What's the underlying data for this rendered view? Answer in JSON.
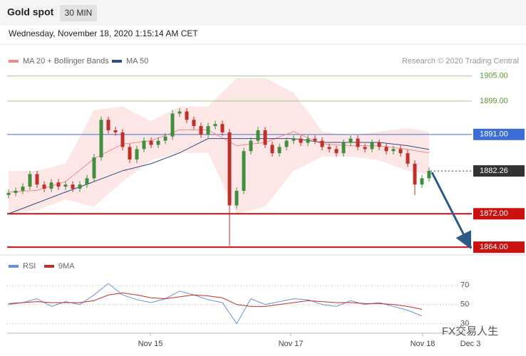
{
  "chart_data": {
    "type": "candlestick",
    "title": "Gold spot",
    "timeframe": "30 MIN",
    "subtitle": "Wednesday, November 18, 2020 1:15:14 AM CET",
    "source": "Research © 2020 Trading Central",
    "watermark": "FX交易人生",
    "up_color": "#3f8f3f",
    "down_color": "#c0302a",
    "x": [
      0,
      1,
      2,
      3,
      4,
      5,
      6,
      7,
      8,
      9,
      10,
      11,
      12,
      13,
      14,
      15,
      16,
      17,
      18,
      19,
      20,
      21,
      22,
      23,
      24,
      25,
      26,
      27,
      28,
      29,
      30,
      31,
      32,
      33,
      34,
      35,
      36,
      37,
      38,
      39,
      40,
      41,
      42,
      43,
      44,
      45,
      46,
      47,
      48,
      49,
      50,
      51,
      52,
      53,
      54,
      55,
      56,
      57,
      58,
      59
    ],
    "open": [
      1876.5,
      1877.0,
      1877.5,
      1878.5,
      1881.5,
      1879.0,
      1878.0,
      1879.5,
      1878.5,
      1879.0,
      1878.0,
      1879.0,
      1880.5,
      1885.5,
      1894.5,
      1892.0,
      1891.5,
      1888.0,
      1885.0,
      1887.5,
      1889.5,
      1888.5,
      1889.5,
      1890.5,
      1896.0,
      1896.5,
      1894.5,
      1893.0,
      1891.0,
      1893.0,
      1893.5,
      1891.5,
      1874.0,
      1877.5,
      1887.0,
      1889.5,
      1892.0,
      1888.5,
      1886.5,
      1888.0,
      1889.5,
      1890.0,
      1889.0,
      1890.0,
      1889.5,
      1888.0,
      1887.5,
      1886.5,
      1889.0,
      1890.0,
      1888.0,
      1887.5,
      1889.0,
      1888.0,
      1887.0,
      1887.5,
      1886.5,
      1884.0,
      1879.0,
      1880.5
    ],
    "high": [
      1877.8,
      1878.3,
      1879.3,
      1882.3,
      1882.3,
      1879.8,
      1880.3,
      1880.3,
      1879.8,
      1879.8,
      1879.8,
      1881.3,
      1886.3,
      1895.3,
      1895.3,
      1892.8,
      1892.3,
      1888.8,
      1888.3,
      1890.3,
      1890.3,
      1890.3,
      1891.3,
      1896.8,
      1897.3,
      1897.3,
      1895.3,
      1893.8,
      1893.8,
      1894.3,
      1894.3,
      1892.3,
      1878.3,
      1887.8,
      1890.3,
      1892.8,
      1892.8,
      1889.3,
      1888.8,
      1890.3,
      1890.8,
      1890.8,
      1890.8,
      1890.8,
      1890.3,
      1888.8,
      1888.3,
      1889.8,
      1890.8,
      1890.8,
      1888.8,
      1889.8,
      1889.8,
      1888.8,
      1888.3,
      1888.3,
      1887.3,
      1884.8,
      1881.3,
      1883.1
    ],
    "low": [
      1875.7,
      1876.2,
      1876.7,
      1877.7,
      1878.2,
      1877.2,
      1877.2,
      1877.7,
      1877.7,
      1877.2,
      1877.2,
      1878.2,
      1879.7,
      1884.7,
      1891.2,
      1890.7,
      1887.2,
      1884.2,
      1884.2,
      1886.7,
      1887.7,
      1887.7,
      1888.7,
      1889.7,
      1895.2,
      1893.7,
      1892.2,
      1890.2,
      1890.2,
      1892.2,
      1890.7,
      1864.3,
      1873.2,
      1876.7,
      1886.2,
      1888.7,
      1887.7,
      1885.7,
      1885.7,
      1887.2,
      1888.7,
      1888.2,
      1888.2,
      1888.7,
      1887.2,
      1886.7,
      1885.7,
      1885.7,
      1888.2,
      1887.2,
      1886.7,
      1886.7,
      1887.2,
      1886.2,
      1886.2,
      1885.7,
      1883.2,
      1876.5,
      1878.2,
      1879.7
    ],
    "close": [
      1877.0,
      1877.5,
      1878.5,
      1881.5,
      1879.0,
      1878.0,
      1879.5,
      1878.5,
      1879.0,
      1878.0,
      1879.0,
      1880.5,
      1885.5,
      1894.5,
      1892.0,
      1891.5,
      1888.0,
      1885.0,
      1887.5,
      1889.5,
      1888.5,
      1889.5,
      1890.5,
      1896.0,
      1896.5,
      1894.5,
      1893.0,
      1891.0,
      1893.0,
      1893.5,
      1891.5,
      1874.0,
      1877.5,
      1887.0,
      1889.5,
      1892.0,
      1888.5,
      1886.5,
      1888.0,
      1889.5,
      1890.0,
      1889.0,
      1890.0,
      1889.5,
      1888.0,
      1887.5,
      1886.5,
      1889.0,
      1890.0,
      1888.0,
      1887.5,
      1889.0,
      1888.0,
      1887.0,
      1887.5,
      1886.5,
      1884.0,
      1879.0,
      1880.5,
      1882.3
    ],
    "xlim": [
      -1,
      72
    ],
    "ylim": [
      1863,
      1907
    ],
    "xticks": [
      {
        "value": 19.9,
        "label": "Nov 15"
      },
      {
        "value": 39.6,
        "label": "Nov 17"
      },
      {
        "value": 58.1,
        "label": "Nov 18"
      },
      {
        "value": 64.8,
        "label": "Dec 3"
      }
    ],
    "overlays": [
      {
        "name": "MA 20 + Bollinger Bands",
        "color": "#f08c8c",
        "band_color": "#fde0e0",
        "x": [
          0,
          4,
          8,
          12,
          16,
          20,
          24,
          28,
          32,
          36,
          40,
          44,
          48,
          52,
          56,
          59
        ],
        "upper": [
          1882.3,
          1882.3,
          1884.0,
          1896.8,
          1897.7,
          1894.2,
          1897.7,
          1897.7,
          1904.5,
          1904.5,
          1901.0,
          1891.7,
          1890.8,
          1891.7,
          1892.5,
          1891.7
        ],
        "values": [
          1877.2,
          1877.6,
          1879.7,
          1885.2,
          1888.7,
          1889.5,
          1892.1,
          1892.1,
          1888.3,
          1889.1,
          1891.7,
          1888.7,
          1888.3,
          1888.3,
          1887.4,
          1886.6
        ],
        "lower": [
          1872.0,
          1872.9,
          1875.4,
          1873.7,
          1879.7,
          1884.8,
          1886.6,
          1886.6,
          1872.0,
          1873.7,
          1882.3,
          1885.7,
          1885.7,
          1884.8,
          1882.3,
          1881.4
        ]
      },
      {
        "name": "MA 50",
        "color": "#2d4f86",
        "x": [
          0,
          4,
          8,
          12,
          16,
          20,
          24,
          28,
          32,
          36,
          40,
          44,
          48,
          52,
          56,
          59
        ],
        "values": [
          1872.0,
          1874.6,
          1877.2,
          1879.7,
          1882.3,
          1884.0,
          1886.6,
          1890.0,
          1890.0,
          1890.0,
          1890.0,
          1889.1,
          1889.1,
          1889.1,
          1888.3,
          1887.4
        ]
      }
    ],
    "levels": {
      "values": [
        1905,
        1899,
        1891,
        1872,
        1864
      ],
      "labels": [
        "1905.00",
        "1899.00",
        "1891.00",
        "1872.00",
        "1864.00"
      ],
      "colors": [
        "#a6c98a",
        "#a6c98a",
        "#3b6fd6",
        "#cc1111",
        "#cc1111"
      ],
      "label_colors": [
        "#5a9a2a",
        "#5a9a2a",
        "#3b6fd6",
        "#cc1111",
        "#cc1111"
      ],
      "widths": [
        1,
        1,
        1,
        2,
        2
      ],
      "boxed": [
        false,
        false,
        true,
        true,
        true
      ]
    },
    "current": {
      "value": 1882.26,
      "label": "1882.26",
      "color": "#333333"
    },
    "oscillator": {
      "ylim": [
        20,
        81
      ],
      "yticks": [
        30,
        50,
        70
      ],
      "series": [
        {
          "name": "RSI",
          "color": "#6b8fd4",
          "x": [
            0,
            2,
            4,
            6,
            8,
            10,
            12,
            14,
            16,
            18,
            20,
            22,
            24,
            26,
            28,
            30,
            32,
            34,
            36,
            38,
            40,
            42,
            44,
            46,
            48,
            50,
            52,
            54,
            56,
            58
          ],
          "values": [
            50,
            52,
            56,
            48,
            53,
            50,
            60,
            72,
            60,
            55,
            52,
            56,
            64,
            60,
            55,
            52,
            30,
            56,
            50,
            53,
            56,
            55,
            50,
            48,
            54,
            50,
            52,
            48,
            44,
            38
          ]
        },
        {
          "name": "9MA",
          "color": "#c0302a",
          "x": [
            0,
            2,
            4,
            6,
            8,
            10,
            12,
            14,
            16,
            18,
            20,
            22,
            24,
            26,
            28,
            30,
            32,
            34,
            36,
            38,
            40,
            42,
            44,
            46,
            48,
            50,
            52,
            54,
            56,
            58
          ],
          "values": [
            51,
            52,
            53,
            52,
            52,
            52,
            54,
            60,
            62,
            60,
            57,
            56,
            58,
            60,
            59,
            57,
            50,
            48,
            48,
            50,
            52,
            54,
            53,
            52,
            52,
            51,
            51,
            50,
            48,
            45
          ]
        }
      ]
    }
  }
}
